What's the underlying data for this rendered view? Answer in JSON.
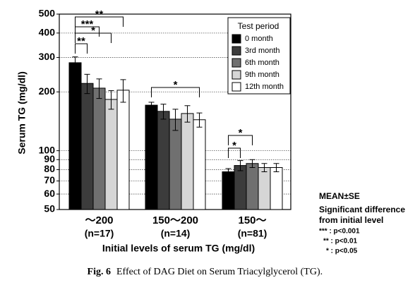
{
  "chart_data": {
    "type": "bar",
    "log_scale": true,
    "grid": true,
    "legend_position": "upper right",
    "y_label": "Serum TG (mg/dl)",
    "x_label": "Initial levels of serum TG (mg/dl)",
    "categories": [
      "～200",
      "150～200",
      "150～"
    ],
    "category_notes": [
      "(n=17)",
      "(n=14)",
      "(n=81)"
    ],
    "ylim": [
      50,
      500
    ],
    "yticks": [
      50,
      60,
      70,
      80,
      90,
      100,
      200,
      300,
      400,
      500
    ],
    "legend_title": "Test period",
    "series": [
      {
        "name": "0 month",
        "color": "#000000",
        "values": [
          282,
          171,
          78
        ],
        "errors": [
          20,
          6,
          3
        ]
      },
      {
        "name": "3rd month",
        "color": "#3c3c3c",
        "values": [
          221,
          159,
          84
        ],
        "errors": [
          25,
          14,
          5
        ]
      },
      {
        "name": "6th month",
        "color": "#707070",
        "values": [
          209,
          145,
          86
        ],
        "errors": [
          24,
          18,
          4
        ]
      },
      {
        "name": "9th month",
        "color": "#d6d6d6",
        "values": [
          183,
          155,
          82
        ],
        "errors": [
          20,
          15,
          4
        ]
      },
      {
        "name": "12th month",
        "color": "#ffffff",
        "values": [
          204,
          144,
          82
        ],
        "errors": [
          27,
          12,
          4
        ]
      }
    ],
    "significance_labels": [
      "**",
      "***",
      "*",
      "**",
      "*",
      "*",
      "*"
    ],
    "notes": [
      "MEAN±SE",
      "Significant difference",
      "from initial level",
      "*** : p<0.001",
      "** : p<0.01",
      "* : p<0.05"
    ],
    "figure_label": "Fig. 6",
    "caption": "Effect of DAG Diet on Serum Triacylglycerol (TG)."
  }
}
